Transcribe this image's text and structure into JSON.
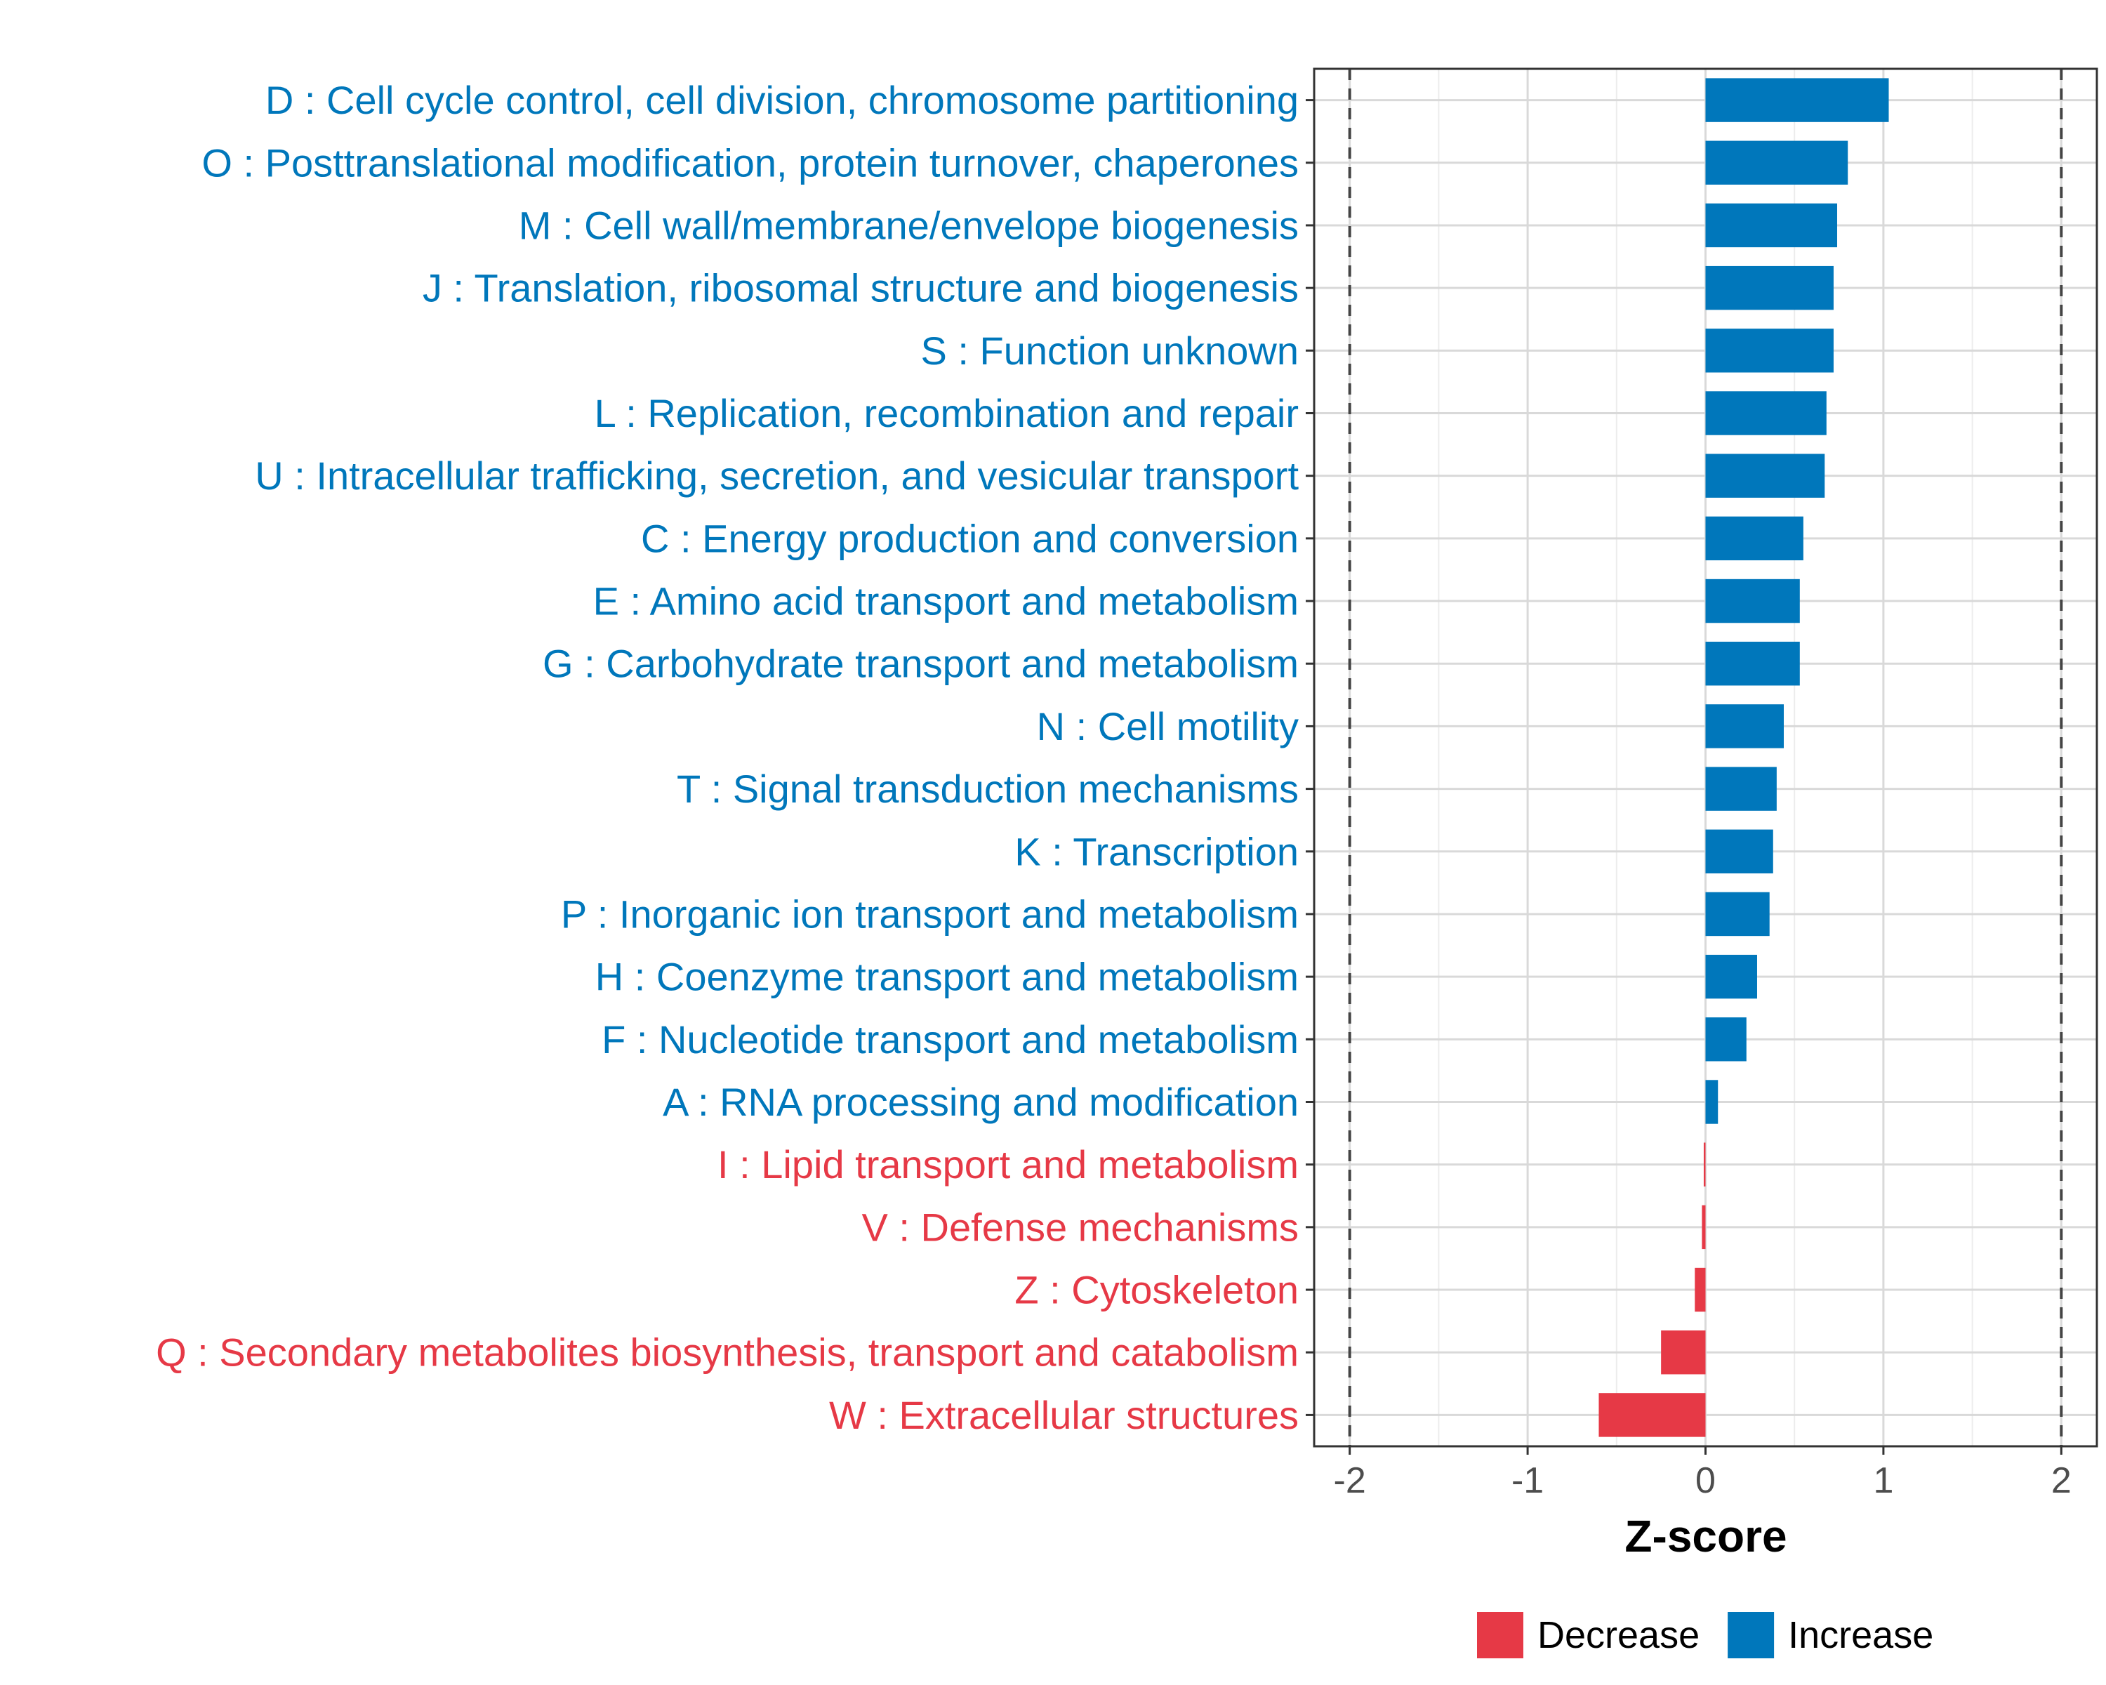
{
  "chart_data": {
    "type": "bar",
    "orientation": "horizontal",
    "title": "",
    "xlabel": "Z-score",
    "ylabel": "",
    "xlim": [
      -2.2,
      2.2
    ],
    "xticks": [
      -2,
      -1,
      0,
      1,
      2
    ],
    "xtick_labels": [
      "-2",
      "-1",
      "0",
      "1",
      "2"
    ],
    "reference_lines": [
      -2,
      2
    ],
    "grid": true,
    "colors": {
      "Decrease": "#E63946",
      "Increase": "#0077BB"
    },
    "legend": {
      "position": "bottom",
      "entries": [
        {
          "label": "Decrease",
          "color": "#E63946"
        },
        {
          "label": "Increase",
          "color": "#0077BB"
        }
      ]
    },
    "categories": [
      {
        "label": "D : Cell cycle control, cell division, chromosome partitioning",
        "value": 1.03,
        "group": "Increase"
      },
      {
        "label": "O : Posttranslational modification, protein turnover, chaperones",
        "value": 0.8,
        "group": "Increase"
      },
      {
        "label": "M : Cell wall/membrane/envelope biogenesis",
        "value": 0.74,
        "group": "Increase"
      },
      {
        "label": "J : Translation, ribosomal structure and biogenesis",
        "value": 0.72,
        "group": "Increase"
      },
      {
        "label": "S : Function unknown",
        "value": 0.72,
        "group": "Increase"
      },
      {
        "label": "L : Replication, recombination and repair",
        "value": 0.68,
        "group": "Increase"
      },
      {
        "label": "U : Intracellular trafficking, secretion, and vesicular transport",
        "value": 0.67,
        "group": "Increase"
      },
      {
        "label": "C : Energy production and conversion",
        "value": 0.55,
        "group": "Increase"
      },
      {
        "label": "E : Amino acid transport and metabolism",
        "value": 0.53,
        "group": "Increase"
      },
      {
        "label": "G : Carbohydrate transport and metabolism",
        "value": 0.53,
        "group": "Increase"
      },
      {
        "label": "N : Cell motility",
        "value": 0.44,
        "group": "Increase"
      },
      {
        "label": "T : Signal transduction mechanisms",
        "value": 0.4,
        "group": "Increase"
      },
      {
        "label": "K : Transcription",
        "value": 0.38,
        "group": "Increase"
      },
      {
        "label": "P : Inorganic ion transport and metabolism",
        "value": 0.36,
        "group": "Increase"
      },
      {
        "label": "H : Coenzyme transport and metabolism",
        "value": 0.29,
        "group": "Increase"
      },
      {
        "label": "F : Nucleotide transport and metabolism",
        "value": 0.23,
        "group": "Increase"
      },
      {
        "label": "A : RNA processing and modification",
        "value": 0.07,
        "group": "Increase"
      },
      {
        "label": "I : Lipid transport and metabolism",
        "value": -0.01,
        "group": "Decrease"
      },
      {
        "label": "V : Defense mechanisms",
        "value": -0.02,
        "group": "Decrease"
      },
      {
        "label": "Z : Cytoskeleton",
        "value": -0.06,
        "group": "Decrease"
      },
      {
        "label": "Q : Secondary metabolites biosynthesis, transport and catabolism",
        "value": -0.25,
        "group": "Decrease"
      },
      {
        "label": "W : Extracellular structures",
        "value": -0.6,
        "group": "Decrease"
      }
    ]
  }
}
